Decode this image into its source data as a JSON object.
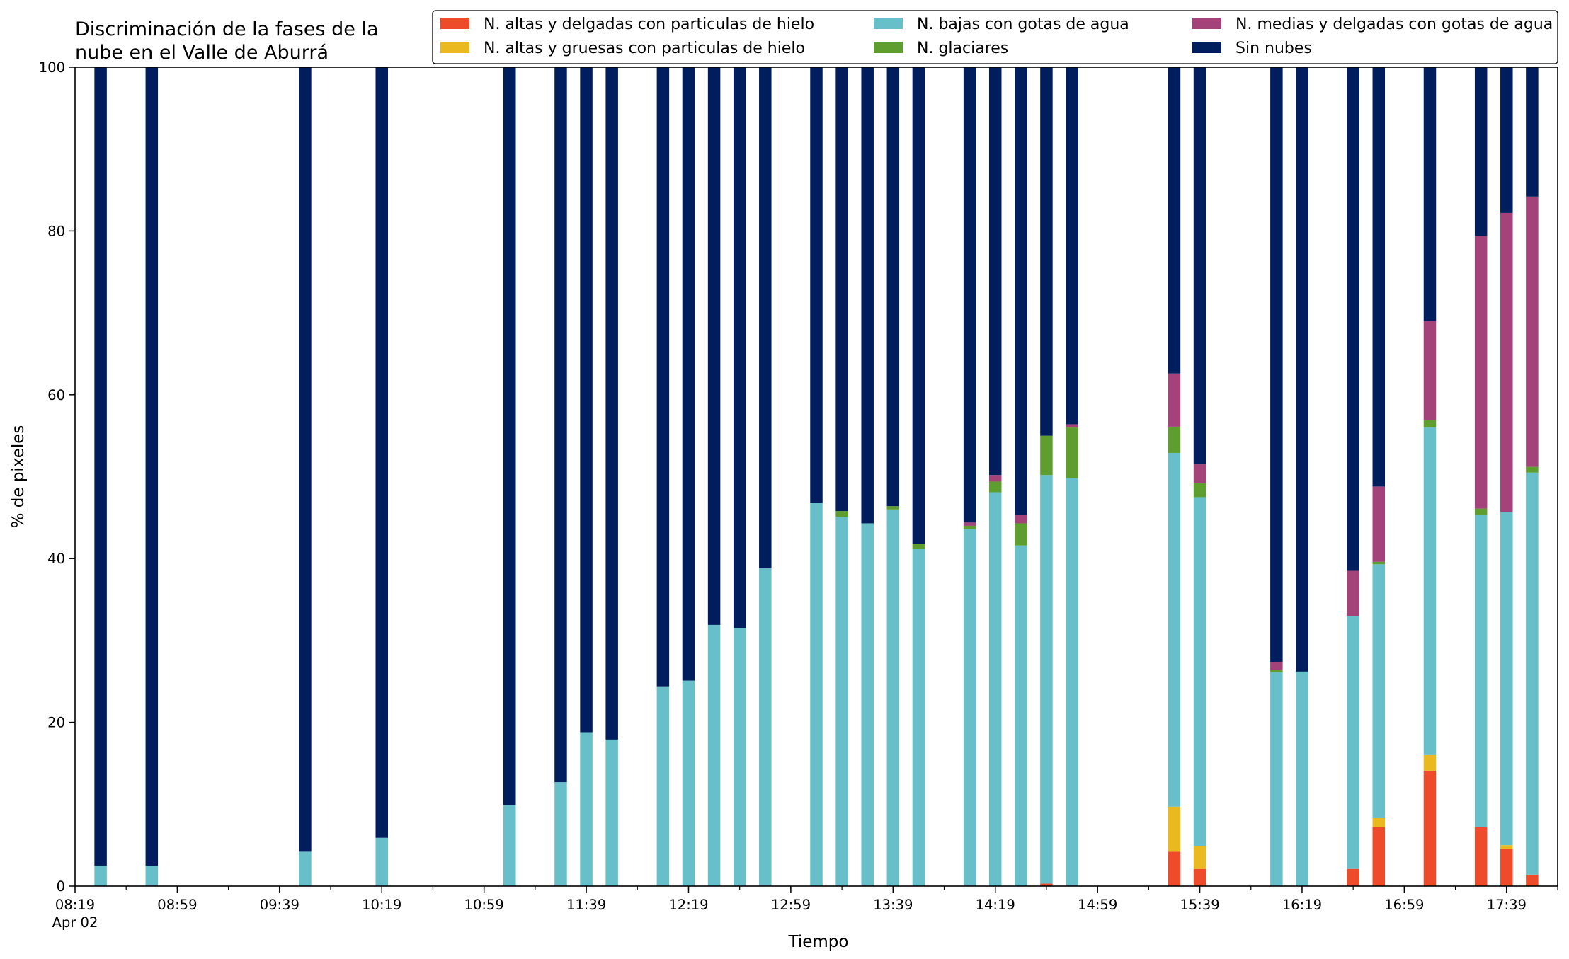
{
  "chart_data": {
    "type": "bar",
    "stacked": true,
    "title_lines": [
      "Discriminación de la fases de la",
      "nube en el Valle de Aburrá"
    ],
    "xlabel": "Tiempo",
    "ylabel": "% de pixeles",
    "ylim": [
      0,
      100
    ],
    "yticks": [
      "0",
      "20",
      "40",
      "60",
      "80",
      "100"
    ],
    "x_start_time": "08:19",
    "x_end_time": "17:59",
    "x_tick_labels": [
      "08:19",
      "08:59",
      "09:39",
      "10:19",
      "10:59",
      "11:39",
      "12:19",
      "12:59",
      "13:39",
      "14:19",
      "14:59",
      "15:39",
      "16:19",
      "16:59",
      "17:39"
    ],
    "x_date_label": "Apr 02",
    "grid": false,
    "legend_placement": "top",
    "times": [
      "08:29",
      "08:49",
      "09:49",
      "10:19",
      "11:09",
      "11:29",
      "11:39",
      "11:49",
      "12:09",
      "12:19",
      "12:29",
      "12:39",
      "12:49",
      "13:09",
      "13:19",
      "13:29",
      "13:39",
      "13:49",
      "14:09",
      "14:19",
      "14:29",
      "14:39",
      "14:49",
      "15:29",
      "15:39",
      "16:09",
      "16:19",
      "16:39",
      "16:49",
      "17:09",
      "17:29",
      "17:39",
      "17:49"
    ],
    "series": [
      {
        "name": "N. altas y delgadas con particulas de hielo",
        "color": "#ee4b2b",
        "values": [
          0,
          0,
          0,
          0,
          0,
          0,
          0,
          0,
          0,
          0,
          0,
          0,
          0,
          0,
          0,
          0,
          0,
          0,
          0,
          0,
          0,
          0.3,
          0,
          4.2,
          2.1,
          0,
          0,
          2.1,
          7.2,
          14.1,
          7.2,
          4.5,
          1.4
        ]
      },
      {
        "name": "N. altas y gruesas con particulas de hielo",
        "color": "#e9b91f",
        "values": [
          0,
          0,
          0,
          0,
          0,
          0,
          0,
          0,
          0,
          0,
          0,
          0,
          0,
          0,
          0,
          0,
          0,
          0,
          0,
          0,
          0,
          0,
          0,
          5.5,
          2.8,
          0,
          0,
          0,
          1.1,
          1.9,
          0,
          0.5,
          0
        ]
      },
      {
        "name": "N. bajas con gotas de agua",
        "color": "#67bfc9",
        "values": [
          2.5,
          2.5,
          4.2,
          5.9,
          9.9,
          12.7,
          18.8,
          17.9,
          24.4,
          25.1,
          31.9,
          31.5,
          38.8,
          46.8,
          45.1,
          44.3,
          46.0,
          41.2,
          43.6,
          48.1,
          41.6,
          49.9,
          49.8,
          43.2,
          42.6,
          26.1,
          26.2,
          30.9,
          31.0,
          40.0,
          38.1,
          40.7,
          49.1
        ]
      },
      {
        "name": "N. glaciares",
        "color": "#5e9e2e",
        "values": [
          0,
          0,
          0,
          0,
          0,
          0,
          0,
          0,
          0,
          0,
          0,
          0,
          0,
          0,
          0.7,
          0,
          0.4,
          0.6,
          0.4,
          1.3,
          2.7,
          4.8,
          6.2,
          3.2,
          1.7,
          0.3,
          0,
          0,
          0.3,
          0.9,
          0.8,
          0,
          0.7
        ]
      },
      {
        "name": "N. medias y delgadas con gotas de agua",
        "color": "#a3437a",
        "values": [
          0,
          0,
          0,
          0,
          0,
          0,
          0,
          0,
          0,
          0,
          0,
          0,
          0,
          0,
          0,
          0,
          0,
          0,
          0.4,
          0.8,
          1.0,
          0,
          0.4,
          6.5,
          2.3,
          1.0,
          0,
          5.5,
          9.2,
          12.1,
          33.3,
          36.5,
          33.0
        ]
      },
      {
        "name": "Sin nubes",
        "color": "#001e5e",
        "values": [
          97.5,
          97.5,
          95.8,
          94.1,
          90.1,
          87.3,
          81.2,
          82.1,
          75.6,
          74.9,
          68.1,
          68.5,
          61.2,
          53.2,
          54.2,
          55.7,
          53.6,
          58.2,
          55.6,
          49.8,
          54.7,
          45.0,
          43.6,
          37.4,
          48.5,
          72.6,
          73.8,
          61.5,
          51.2,
          31.0,
          20.6,
          17.8,
          15.8
        ]
      }
    ],
    "legend_columns": [
      [
        "N. altas y delgadas con particulas de hielo",
        "N. altas y gruesas con particulas de hielo"
      ],
      [
        "N. bajas con gotas de agua",
        "N. glaciares"
      ],
      [
        "N. medias y delgadas con gotas de agua",
        "Sin nubes"
      ]
    ]
  }
}
